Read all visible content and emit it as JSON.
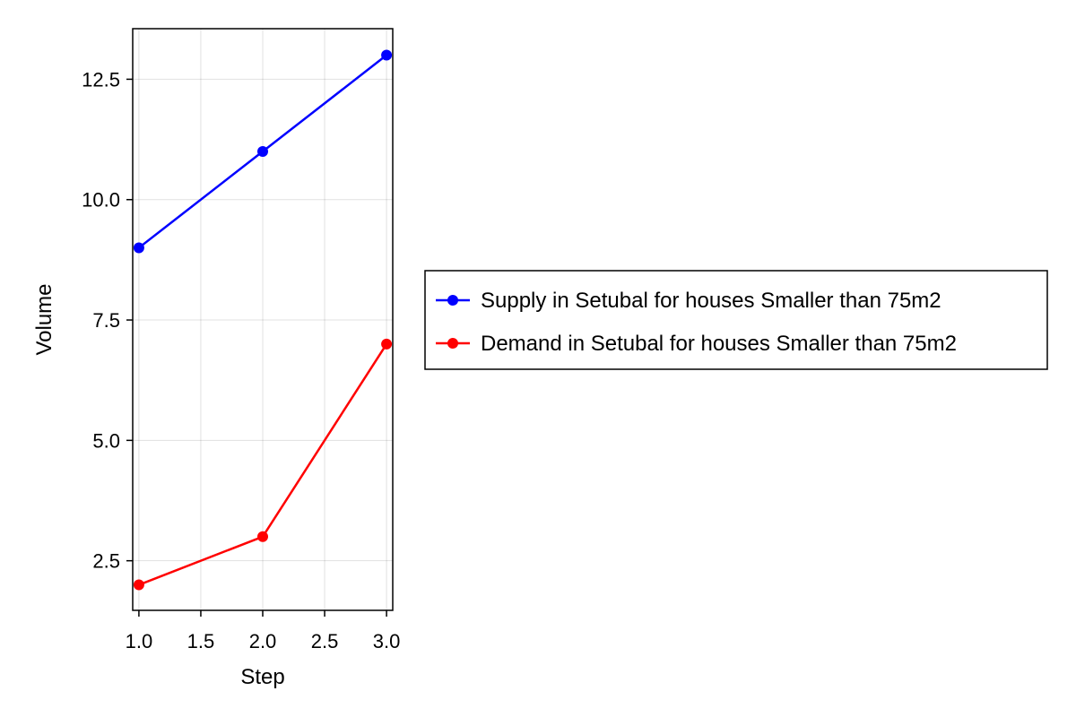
{
  "chart_data": {
    "type": "line",
    "title": "",
    "xlabel": "Step",
    "ylabel": "Volume",
    "xlim": [
      0.95,
      3.05
    ],
    "ylim": [
      1.47,
      13.55
    ],
    "x_ticks": [
      1.0,
      1.5,
      2.0,
      2.5,
      3.0
    ],
    "x_tick_labels": [
      "1.0",
      "1.5",
      "2.0",
      "2.5",
      "3.0"
    ],
    "y_ticks": [
      2.5,
      5.0,
      7.5,
      10.0,
      12.5
    ],
    "y_tick_labels": [
      "2.5",
      "5.0",
      "7.5",
      "10.0",
      "12.5"
    ],
    "grid": true,
    "legend_position": "right",
    "series": [
      {
        "name": "Supply in Setubal for houses Smaller than 75m2",
        "color": "#0000ff",
        "x": [
          1,
          2,
          3
        ],
        "y": [
          9,
          11,
          13
        ]
      },
      {
        "name": "Demand in Setubal for houses Smaller than 75m2",
        "color": "#ff0000",
        "x": [
          1,
          2,
          3
        ],
        "y": [
          2,
          3,
          7
        ]
      }
    ]
  }
}
